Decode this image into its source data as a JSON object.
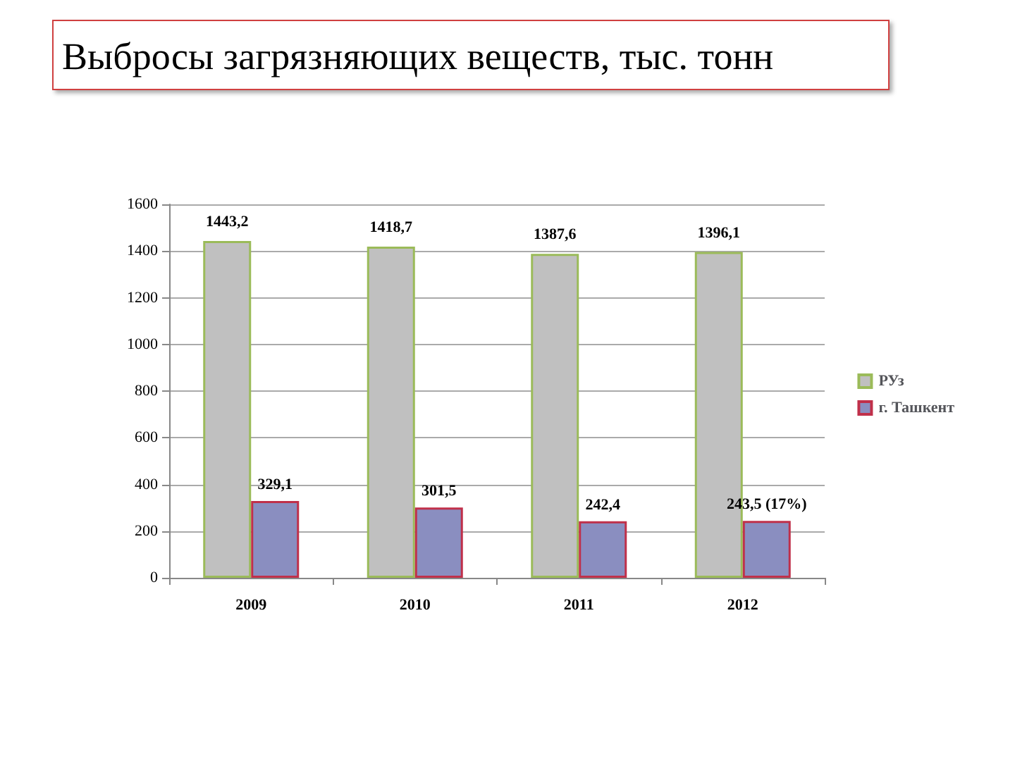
{
  "chart_data": {
    "type": "bar",
    "title": "Выбросы загрязняющих веществ, тыс. тонн",
    "categories": [
      "2009",
      "2010",
      "2011",
      "2012"
    ],
    "series": [
      {
        "name": "РУз",
        "color": "#c0c0c0",
        "values": [
          1443.2,
          1418.7,
          1387.6,
          1396.1
        ],
        "value_labels": [
          "1443,2",
          "1418,7",
          "1387,6",
          "1396,1"
        ]
      },
      {
        "name": "г. Ташкент",
        "color": "#8a8ec0",
        "values": [
          329.1,
          301.5,
          242.4,
          243.5
        ],
        "value_labels": [
          "329,1",
          "301,5",
          "242,4",
          "243,5 (17%)"
        ]
      }
    ],
    "ylim": [
      0,
      1600
    ],
    "yticks": [
      0,
      200,
      400,
      600,
      800,
      1000,
      1200,
      1400,
      1600
    ],
    "grid": "y",
    "legend": "right"
  }
}
